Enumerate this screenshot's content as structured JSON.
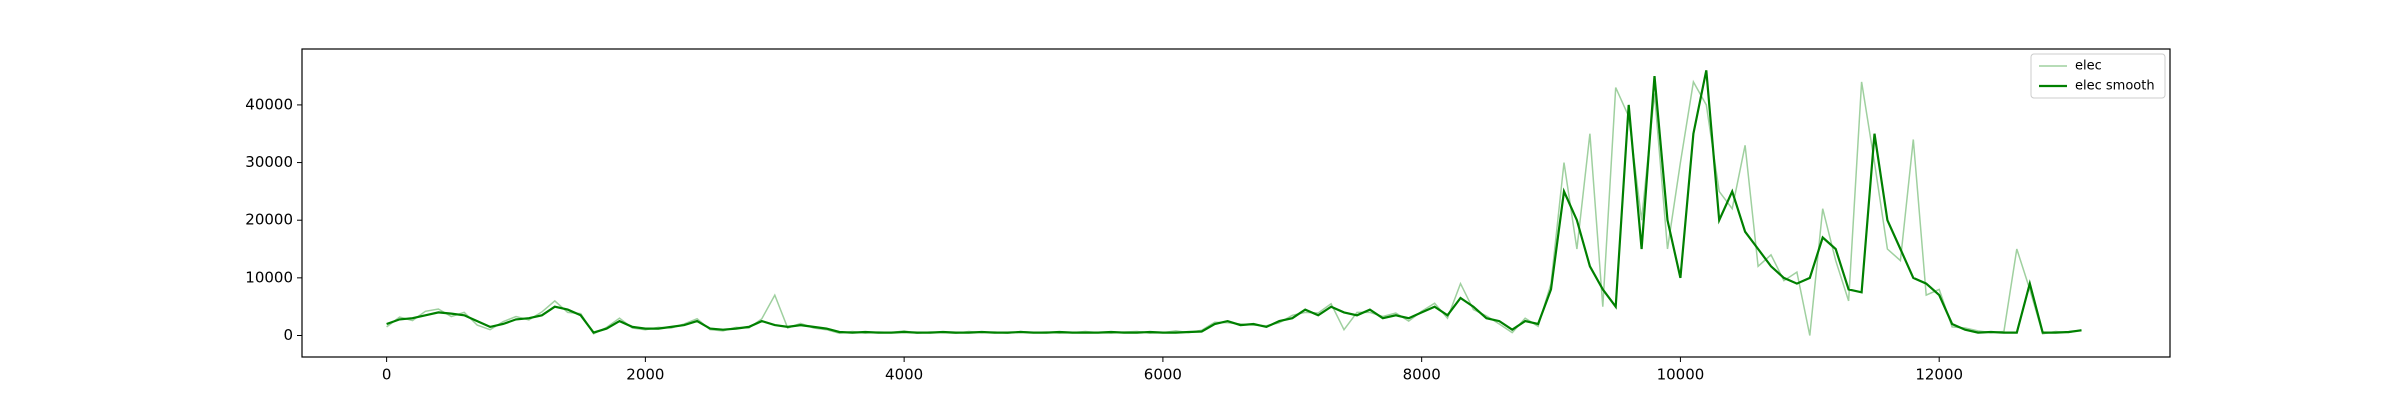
{
  "chart_data": {
    "type": "line",
    "x": [
      0,
      100,
      200,
      300,
      400,
      500,
      600,
      700,
      800,
      900,
      1000,
      1100,
      1200,
      1300,
      1400,
      1500,
      1600,
      1700,
      1800,
      1900,
      2000,
      2100,
      2200,
      2300,
      2400,
      2500,
      2600,
      2700,
      2800,
      2900,
      3000,
      3100,
      3200,
      3300,
      3400,
      3500,
      3600,
      3700,
      3800,
      3900,
      4000,
      4100,
      4200,
      4300,
      4400,
      4500,
      4600,
      4700,
      4800,
      4900,
      5000,
      5100,
      5200,
      5300,
      5400,
      5500,
      5600,
      5700,
      5800,
      5900,
      6000,
      6100,
      6200,
      6300,
      6400,
      6500,
      6600,
      6700,
      6800,
      6900,
      7000,
      7100,
      7200,
      7300,
      7400,
      7500,
      7600,
      7700,
      7800,
      7900,
      8000,
      8100,
      8200,
      8300,
      8400,
      8500,
      8600,
      8700,
      8800,
      8900,
      9000,
      9100,
      9200,
      9300,
      9400,
      9500,
      9600,
      9700,
      9800,
      9900,
      10000,
      10100,
      10200,
      10300,
      10400,
      10500,
      10600,
      10700,
      10800,
      10900,
      11000,
      11100,
      11200,
      11300,
      11400,
      11500,
      11600,
      11700,
      11800,
      11900,
      12000,
      12100,
      12200,
      12300,
      12400,
      12500,
      12600,
      12700,
      12800,
      12900,
      13000,
      13100
    ],
    "series": [
      {
        "name": "elec",
        "color": "#9fd09f",
        "values": [
          1500,
          3200,
          2600,
          4200,
          4600,
          3300,
          4000,
          1800,
          1000,
          2400,
          3300,
          2700,
          4100,
          6000,
          4000,
          3800,
          300,
          1400,
          3000,
          1300,
          1000,
          1400,
          1300,
          2000,
          2900,
          1000,
          800,
          1400,
          1300,
          2900,
          7000,
          1300,
          2100,
          1300,
          1000,
          400,
          700,
          400,
          600,
          500,
          800,
          400,
          600,
          500,
          400,
          700,
          500,
          600,
          400,
          700,
          500,
          600,
          400,
          500,
          700,
          500,
          400,
          600,
          700,
          400,
          500,
          800,
          500,
          900,
          2300,
          2200,
          2000,
          1800,
          1700,
          2200,
          3500,
          4000,
          3900,
          5500,
          1000,
          4000,
          4000,
          3300,
          3900,
          2500,
          4200,
          5600,
          3000,
          9000,
          4500,
          3400,
          2000,
          500,
          3000,
          1600,
          9000,
          30000,
          15000,
          35000,
          5000,
          43000,
          38000,
          20000,
          42000,
          15000,
          30000,
          44000,
          40000,
          25000,
          22000,
          33000,
          12000,
          14000,
          9500,
          11000,
          0,
          22000,
          13000,
          6000,
          44000,
          30000,
          15000,
          13000,
          34000,
          7000,
          8000,
          1500,
          1300,
          800,
          500,
          700,
          15000,
          8000,
          300,
          700,
          500,
          1000
        ]
      },
      {
        "name": "elec smooth",
        "color": "#008000",
        "values": [
          2000,
          2800,
          3000,
          3500,
          4000,
          3800,
          3500,
          2500,
          1500,
          2000,
          2800,
          3000,
          3500,
          5000,
          4500,
          3500,
          500,
          1200,
          2500,
          1500,
          1200,
          1200,
          1500,
          1800,
          2500,
          1200,
          1000,
          1200,
          1500,
          2500,
          1800,
          1500,
          1800,
          1500,
          1200,
          600,
          500,
          600,
          500,
          500,
          600,
          500,
          500,
          600,
          500,
          500,
          600,
          500,
          500,
          600,
          500,
          500,
          600,
          500,
          500,
          500,
          600,
          500,
          500,
          600,
          500,
          500,
          600,
          700,
          2000,
          2500,
          1800,
          2000,
          1500,
          2500,
          3000,
          4500,
          3500,
          5000,
          4000,
          3500,
          4500,
          3000,
          3500,
          3000,
          4000,
          5000,
          3500,
          6500,
          5000,
          3000,
          2500,
          1000,
          2500,
          2000,
          8000,
          25000,
          20000,
          12000,
          8000,
          5000,
          40000,
          15000,
          45000,
          20000,
          10000,
          35000,
          46000,
          20000,
          25000,
          18000,
          15000,
          12000,
          10000,
          9000,
          10000,
          17000,
          15000,
          8000,
          7500,
          35000,
          20000,
          15000,
          10000,
          9000,
          7000,
          2000,
          1000,
          500,
          600,
          500,
          500,
          9000,
          500,
          500,
          600,
          900
        ]
      }
    ],
    "xlim": [
      -654,
      13784
    ],
    "ylim": [
      -3730,
      49700
    ],
    "xticks": [
      0,
      2000,
      4000,
      6000,
      8000,
      10000,
      12000
    ],
    "yticks": [
      0,
      10000,
      20000,
      30000,
      40000
    ],
    "legend": "upper right"
  }
}
